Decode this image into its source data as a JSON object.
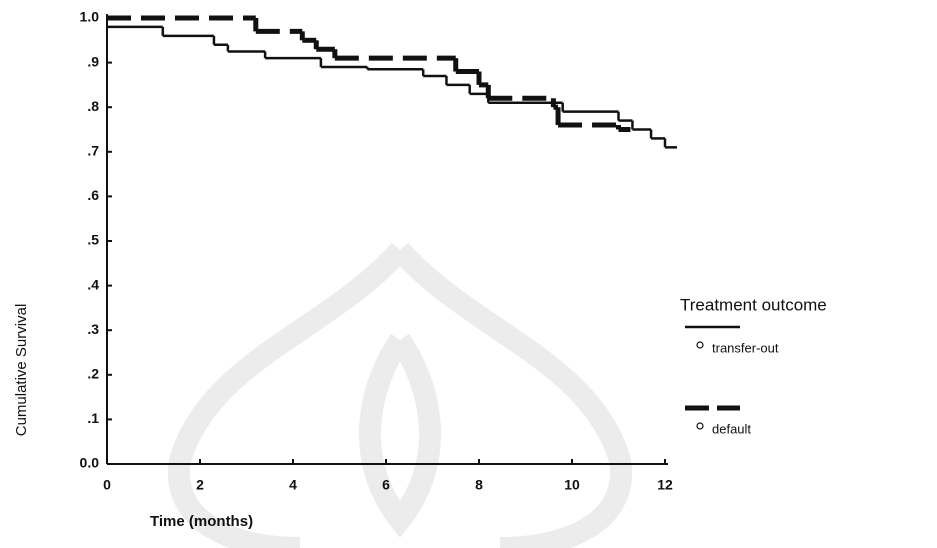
{
  "chart_data": {
    "type": "step",
    "x_label": "Time (months)",
    "y_label": "Cumulative Survival",
    "xlim": [
      0,
      12
    ],
    "ylim": [
      0,
      1
    ],
    "xticks": [
      0,
      2,
      4,
      6,
      8,
      10,
      12
    ],
    "yticks": [
      {
        "value": 0,
        "label": "0.0"
      },
      {
        "value": 0.1,
        "label": ".1"
      },
      {
        "value": 0.2,
        "label": ".2"
      },
      {
        "value": 0.3,
        "label": ".3"
      },
      {
        "value": 0.4,
        "label": ".4"
      },
      {
        "value": 0.5,
        "label": ".5"
      },
      {
        "value": 0.6,
        "label": ".6"
      },
      {
        "value": 0.7,
        "label": ".7"
      },
      {
        "value": 0.8,
        "label": ".8"
      },
      {
        "value": 0.9,
        "label": ".9"
      },
      {
        "value": 1,
        "label": "1.0"
      }
    ],
    "legend_title": "Treatment outcome",
    "series": [
      {
        "name": "transfer-out",
        "color": "#111111",
        "dash": false,
        "x": [
          0,
          1.2,
          2.3,
          2.6,
          3.4,
          4.6,
          5.6,
          6.8,
          7.3,
          7.8,
          8.2,
          9.8,
          11.0,
          11.3,
          11.7,
          12.0
        ],
        "values": [
          0.98,
          0.96,
          0.94,
          0.925,
          0.91,
          0.89,
          0.885,
          0.87,
          0.85,
          0.83,
          0.81,
          0.79,
          0.77,
          0.75,
          0.73,
          0.71
        ]
      },
      {
        "name": "default",
        "color": "#111111",
        "dash": true,
        "x": [
          0,
          3.2,
          4.2,
          4.5,
          4.9,
          7.5,
          8.0,
          8.2,
          9.6,
          9.7,
          11.0
        ],
        "values": [
          1.0,
          0.97,
          0.95,
          0.93,
          0.91,
          0.88,
          0.85,
          0.82,
          0.8,
          0.76,
          0.75
        ]
      }
    ]
  }
}
